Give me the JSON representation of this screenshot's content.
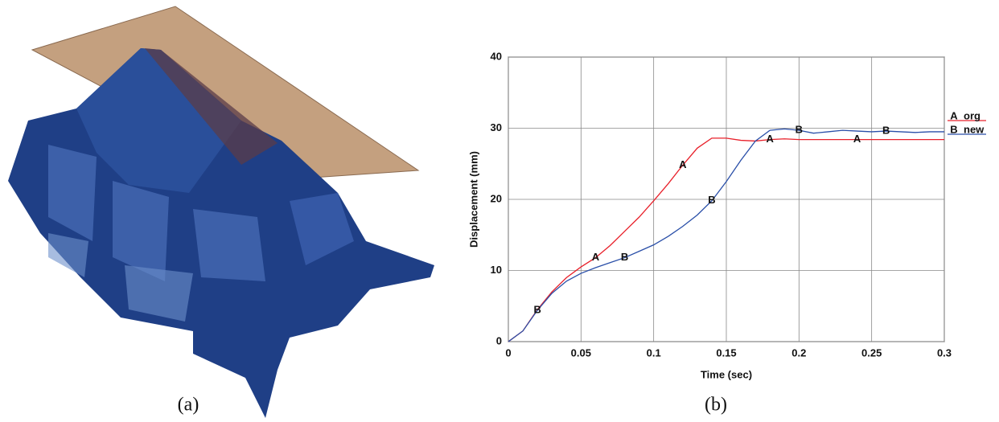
{
  "captions": {
    "a": "(a)",
    "b": "(b)"
  },
  "chart_data": {
    "type": "line",
    "xlabel": "Time (sec)",
    "ylabel": "Displacement (mm)",
    "x": [
      0,
      0.01,
      0.02,
      0.03,
      0.04,
      0.05,
      0.06,
      0.07,
      0.08,
      0.09,
      0.1,
      0.11,
      0.12,
      0.13,
      0.14,
      0.15,
      0.16,
      0.17,
      0.18,
      0.19,
      0.2,
      0.21,
      0.22,
      0.23,
      0.24,
      0.25,
      0.26,
      0.27,
      0.28,
      0.29,
      0.3
    ],
    "series": [
      {
        "name": "org",
        "marker": "A",
        "color": "#e8202a",
        "marker_indices": [
          6,
          12,
          18,
          24
        ],
        "values": [
          0,
          1.5,
          4.5,
          7,
          9,
          10.5,
          11.8,
          13.5,
          15.5,
          17.5,
          19.8,
          22.2,
          24.8,
          27.2,
          28.6,
          28.6,
          28.3,
          28.2,
          28.4,
          28.5,
          28.4,
          28.4,
          28.4,
          28.4,
          28.4,
          28.4,
          28.4,
          28.4,
          28.4,
          28.4,
          28.4
        ]
      },
      {
        "name": "new",
        "marker": "B",
        "color": "#2a4fa8",
        "marker_indices": [
          2,
          8,
          14,
          20,
          26
        ],
        "values": [
          0,
          1.5,
          4.4,
          6.8,
          8.5,
          9.6,
          10.4,
          11.1,
          11.8,
          12.7,
          13.6,
          14.8,
          16.2,
          17.8,
          19.8,
          22.5,
          25.5,
          28.2,
          29.7,
          29.9,
          29.7,
          29.3,
          29.5,
          29.7,
          29.6,
          29.5,
          29.6,
          29.5,
          29.4,
          29.5,
          29.5
        ]
      }
    ],
    "xlim": [
      0,
      0.3
    ],
    "ylim": [
      0,
      40
    ],
    "xticks": [
      0,
      0.05,
      0.1,
      0.15,
      0.2,
      0.25,
      0.3
    ],
    "yticks": [
      0,
      10,
      20,
      30,
      40
    ],
    "grid": true
  }
}
